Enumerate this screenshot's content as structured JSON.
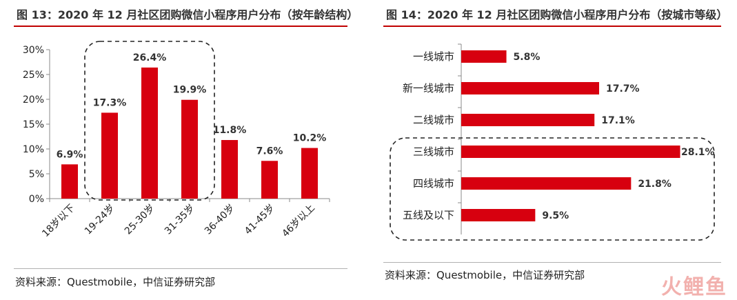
{
  "left": {
    "title": "图 13：2020 年 12 月社区团购微信小程序用户分布（按年龄结构）",
    "source": "资料来源：Questmobile，中信证券研究部"
  },
  "right": {
    "title": "图 14：2020 年 12 月社区团购微信小程序用户分布（按城市等级）",
    "source": "资料来源：Questmobile，中信证券研究部"
  },
  "watermark": "火鲤鱼",
  "colors": {
    "bar": "#d7000f",
    "title_rule": "#c00000"
  },
  "chart_data": [
    {
      "type": "bar",
      "orientation": "vertical",
      "categories": [
        "18岁以下",
        "19-24岁",
        "25-30岁",
        "31-35岁",
        "36-40岁",
        "41-45岁",
        "46岁以上"
      ],
      "values": [
        6.9,
        17.3,
        26.4,
        19.9,
        11.8,
        7.6,
        10.2
      ],
      "data_labels": [
        "6.9%",
        "17.3%",
        "26.4%",
        "19.9%",
        "11.8%",
        "7.6%",
        "10.2%"
      ],
      "y_ticks": [
        "0%",
        "5%",
        "10%",
        "15%",
        "20%",
        "25%",
        "30%"
      ],
      "ylim": [
        0,
        30
      ],
      "grid": false,
      "highlight_range": [
        "19-24岁",
        "31-35岁"
      ]
    },
    {
      "type": "bar",
      "orientation": "horizontal",
      "categories": [
        "一线城市",
        "新一线城市",
        "二线城市",
        "三线城市",
        "四线城市",
        "五线及以下"
      ],
      "values": [
        5.8,
        17.7,
        17.1,
        28.1,
        21.8,
        9.5
      ],
      "data_labels": [
        "5.8%",
        "17.7%",
        "17.1%",
        "28.1%",
        "21.8%",
        "9.5%"
      ],
      "xlim": [
        0,
        28
      ],
      "grid": false,
      "highlight_range": [
        "三线城市",
        "五线及以下"
      ]
    }
  ]
}
